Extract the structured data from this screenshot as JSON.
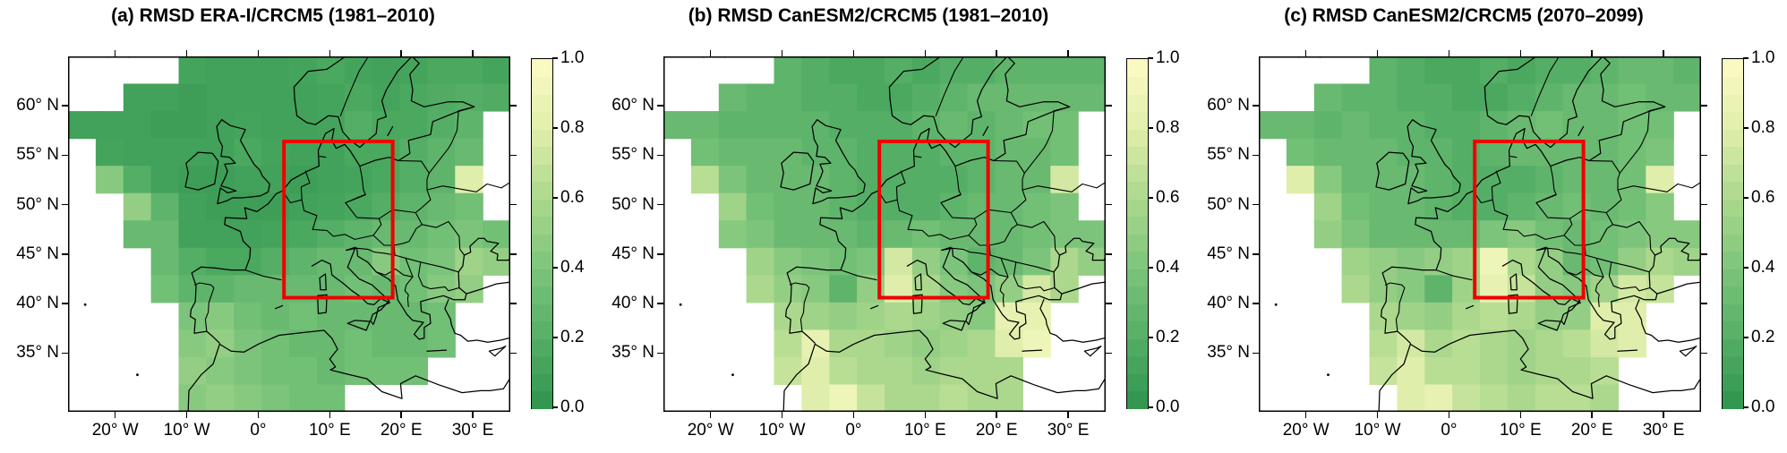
{
  "chart_data": {
    "type": "heatmap",
    "subtype": "gridded-map",
    "description_visible_elements": "Three gridded RMSD maps over Europe with shared green-to-yellow colorbars and a red focus-region rectangle",
    "lon_range": [
      -26.6,
      35.25
    ],
    "lat_range": [
      29.06,
      65.0
    ],
    "grid_shape": {
      "cols": 16,
      "rows": 13
    },
    "x_axis": {
      "ticks": [
        {
          "value": -20,
          "label": "20° W"
        },
        {
          "value": -10,
          "label": "10° W"
        },
        {
          "value": 0,
          "label": "0°"
        },
        {
          "value": 10,
          "label": "10° E"
        },
        {
          "value": 20,
          "label": "20° E"
        },
        {
          "value": 30,
          "label": "30° E"
        }
      ]
    },
    "y_axis": {
      "ticks": [
        {
          "value": 60,
          "label": "60° N"
        },
        {
          "value": 55,
          "label": "55° N"
        },
        {
          "value": 50,
          "label": "50° N"
        },
        {
          "value": 45,
          "label": "45° N"
        },
        {
          "value": 40,
          "label": "40° N"
        },
        {
          "value": 35,
          "label": "35° N"
        }
      ]
    },
    "colorbar": {
      "min": 0.0,
      "max": 1.0,
      "steps": 20,
      "ticks": [
        {
          "value": 1.0,
          "label": "1.0"
        },
        {
          "value": 0.8,
          "label": "0.8"
        },
        {
          "value": 0.6,
          "label": "0.6"
        },
        {
          "value": 0.4,
          "label": "0.4"
        },
        {
          "value": 0.2,
          "label": "0.2"
        },
        {
          "value": 0.0,
          "label": "0.0"
        }
      ],
      "colormap_stops": [
        {
          "value": 0.0,
          "color": "#2e944e"
        },
        {
          "value": 0.2,
          "color": "#55ae65"
        },
        {
          "value": 0.4,
          "color": "#7cc47c"
        },
        {
          "value": 0.6,
          "color": "#abd88c"
        },
        {
          "value": 0.8,
          "color": "#e0eeab"
        },
        {
          "value": 1.0,
          "color": "#fcfbc4"
        }
      ]
    },
    "focus_region_box": {
      "lon_min": 3.6,
      "lon_max": 18.8,
      "lat_min": 40.6,
      "lat_max": 56.4,
      "color": "#ee0000"
    },
    "map_line_color": "#000000",
    "panels": [
      {
        "id": "a",
        "title": "(a) RMSD ERA-I/CRCM5 (1981–2010)",
        "grid": [
          [
            null,
            null,
            null,
            null,
            0.12,
            0.1,
            0.1,
            0.1,
            0.12,
            0.15,
            0.12,
            0.1,
            0.12,
            0.15,
            0.15,
            0.12
          ],
          [
            null,
            null,
            0.1,
            0.1,
            0.08,
            0.1,
            0.1,
            0.1,
            0.1,
            0.12,
            0.15,
            0.12,
            0.15,
            0.18,
            0.2,
            0.18
          ],
          [
            0.1,
            0.1,
            0.1,
            0.08,
            0.08,
            0.1,
            0.12,
            0.1,
            0.1,
            0.12,
            0.2,
            0.15,
            0.15,
            0.2,
            0.25,
            null
          ],
          [
            null,
            0.12,
            0.1,
            0.1,
            0.1,
            0.1,
            0.15,
            0.12,
            0.1,
            0.1,
            0.15,
            0.15,
            0.2,
            0.25,
            0.3,
            null
          ],
          [
            null,
            0.45,
            0.2,
            0.1,
            0.08,
            0.08,
            0.1,
            0.1,
            0.08,
            0.1,
            0.12,
            0.15,
            0.2,
            0.25,
            0.8,
            null
          ],
          [
            null,
            null,
            0.5,
            0.25,
            0.1,
            0.08,
            0.08,
            0.08,
            0.1,
            0.12,
            0.15,
            0.2,
            0.25,
            0.3,
            0.35,
            null
          ],
          [
            null,
            null,
            0.3,
            0.3,
            0.1,
            0.1,
            0.1,
            0.12,
            0.15,
            0.2,
            0.25,
            0.3,
            0.3,
            0.35,
            0.4,
            0.35
          ],
          [
            null,
            null,
            null,
            0.3,
            0.2,
            0.15,
            0.15,
            0.2,
            0.25,
            0.3,
            0.3,
            0.45,
            0.35,
            0.4,
            0.55,
            0.5
          ],
          [
            null,
            null,
            null,
            0.35,
            0.25,
            0.25,
            0.3,
            0.3,
            0.3,
            0.3,
            0.35,
            0.3,
            0.35,
            0.45,
            0.5,
            null
          ],
          [
            null,
            null,
            null,
            null,
            0.4,
            0.45,
            0.35,
            0.3,
            0.35,
            0.3,
            0.3,
            0.3,
            0.3,
            0.35,
            null,
            null
          ],
          [
            null,
            null,
            null,
            null,
            0.45,
            0.5,
            0.4,
            0.35,
            0.3,
            0.3,
            0.35,
            0.3,
            0.3,
            0.35,
            null,
            null
          ],
          [
            null,
            null,
            null,
            null,
            0.5,
            0.45,
            0.4,
            0.35,
            0.35,
            0.3,
            0.35,
            0.35,
            0.35,
            null,
            null,
            null
          ],
          [
            null,
            null,
            null,
            null,
            0.45,
            0.5,
            0.45,
            0.4,
            0.35,
            0.35,
            null,
            null,
            null,
            null,
            null,
            null
          ]
        ]
      },
      {
        "id": "b",
        "title": "(b) RMSD CanESM2/CRCM5 (1981–2010)",
        "grid": [
          [
            null,
            null,
            null,
            null,
            0.25,
            0.2,
            0.15,
            0.15,
            0.2,
            0.15,
            0.2,
            0.2,
            0.25,
            0.25,
            0.25,
            0.25
          ],
          [
            null,
            null,
            0.3,
            0.25,
            0.25,
            0.2,
            0.2,
            0.15,
            0.15,
            0.2,
            0.25,
            0.3,
            0.3,
            0.3,
            0.3,
            0.3
          ],
          [
            0.3,
            0.3,
            0.25,
            0.25,
            0.25,
            0.25,
            0.2,
            0.2,
            0.2,
            0.25,
            0.3,
            0.25,
            0.3,
            0.35,
            0.35,
            null
          ],
          [
            null,
            0.35,
            0.3,
            0.3,
            0.3,
            0.25,
            0.25,
            0.2,
            0.2,
            0.2,
            0.25,
            0.25,
            0.3,
            0.3,
            0.35,
            null
          ],
          [
            null,
            0.65,
            0.4,
            0.3,
            0.3,
            0.3,
            0.25,
            0.2,
            0.2,
            0.2,
            0.2,
            0.25,
            0.3,
            0.3,
            0.75,
            null
          ],
          [
            null,
            null,
            0.55,
            0.35,
            0.3,
            0.3,
            0.25,
            0.2,
            0.2,
            0.2,
            0.25,
            0.3,
            0.3,
            0.35,
            0.4,
            null
          ],
          [
            null,
            null,
            0.45,
            0.4,
            0.3,
            0.3,
            0.3,
            0.25,
            0.3,
            0.35,
            0.3,
            0.3,
            0.3,
            0.35,
            0.4,
            0.4
          ],
          [
            null,
            null,
            null,
            0.55,
            0.45,
            0.4,
            0.35,
            0.4,
            0.75,
            0.5,
            0.4,
            0.25,
            0.3,
            0.4,
            0.6,
            0.5
          ],
          [
            null,
            null,
            null,
            0.6,
            0.5,
            0.45,
            0.25,
            0.5,
            0.8,
            0.6,
            0.45,
            0.4,
            0.5,
            0.75,
            0.6,
            null
          ],
          [
            null,
            null,
            null,
            null,
            0.6,
            0.55,
            0.5,
            0.55,
            0.6,
            0.55,
            0.5,
            0.45,
            0.85,
            0.85,
            null,
            null
          ],
          [
            null,
            null,
            null,
            null,
            0.65,
            0.85,
            0.6,
            0.6,
            0.55,
            0.5,
            0.55,
            0.6,
            0.8,
            0.9,
            null,
            null
          ],
          [
            null,
            null,
            null,
            null,
            0.7,
            0.8,
            0.65,
            0.6,
            0.6,
            0.55,
            0.6,
            0.6,
            0.6,
            null,
            null,
            null
          ],
          [
            null,
            null,
            null,
            null,
            null,
            0.8,
            0.9,
            0.7,
            0.6,
            0.6,
            0.65,
            0.6,
            0.6,
            null,
            null,
            null
          ]
        ]
      },
      {
        "id": "c",
        "title": "(c) RMSD CanESM2/CRCM5 (2070–2099)",
        "grid": [
          [
            null,
            null,
            null,
            null,
            0.25,
            0.2,
            0.15,
            0.15,
            0.2,
            0.15,
            0.2,
            0.2,
            0.25,
            0.3,
            0.3,
            0.25
          ],
          [
            null,
            null,
            0.3,
            0.25,
            0.25,
            0.2,
            0.2,
            0.15,
            0.15,
            0.2,
            0.25,
            0.3,
            0.3,
            0.35,
            0.3,
            0.3
          ],
          [
            0.3,
            0.3,
            0.25,
            0.3,
            0.25,
            0.25,
            0.2,
            0.2,
            0.25,
            0.3,
            0.35,
            0.3,
            0.3,
            0.35,
            0.35,
            null
          ],
          [
            null,
            0.35,
            0.3,
            0.3,
            0.3,
            0.25,
            0.25,
            0.2,
            0.25,
            0.3,
            0.3,
            0.3,
            0.3,
            0.35,
            0.4,
            null
          ],
          [
            null,
            0.8,
            0.45,
            0.3,
            0.3,
            0.3,
            0.25,
            0.2,
            0.2,
            0.2,
            0.25,
            0.3,
            0.3,
            0.35,
            0.8,
            null
          ],
          [
            null,
            null,
            0.55,
            0.35,
            0.3,
            0.3,
            0.25,
            0.2,
            0.2,
            0.25,
            0.3,
            0.35,
            0.3,
            0.35,
            0.45,
            null
          ],
          [
            null,
            null,
            0.5,
            0.4,
            0.3,
            0.3,
            0.3,
            0.3,
            0.4,
            0.45,
            0.35,
            0.3,
            0.35,
            0.4,
            0.45,
            0.45
          ],
          [
            null,
            null,
            null,
            0.55,
            0.5,
            0.45,
            0.5,
            0.55,
            0.9,
            0.6,
            0.5,
            0.3,
            0.35,
            0.5,
            0.6,
            0.55
          ],
          [
            null,
            null,
            null,
            0.6,
            0.5,
            0.45,
            0.25,
            0.55,
            0.85,
            0.7,
            0.5,
            0.45,
            0.55,
            0.75,
            0.7,
            null
          ],
          [
            null,
            null,
            null,
            null,
            0.6,
            0.55,
            0.5,
            0.6,
            0.65,
            0.6,
            0.5,
            0.5,
            0.8,
            0.8,
            null,
            null
          ],
          [
            null,
            null,
            null,
            null,
            0.65,
            0.75,
            0.6,
            0.65,
            0.6,
            0.55,
            0.6,
            0.65,
            0.75,
            0.8,
            null,
            null
          ],
          [
            null,
            null,
            null,
            null,
            0.7,
            0.8,
            0.65,
            0.65,
            0.6,
            0.55,
            0.6,
            0.6,
            0.65,
            null,
            null,
            null
          ],
          [
            null,
            null,
            null,
            null,
            null,
            0.8,
            0.85,
            0.7,
            0.65,
            0.6,
            0.65,
            0.65,
            0.6,
            null,
            null,
            null
          ]
        ]
      }
    ]
  }
}
